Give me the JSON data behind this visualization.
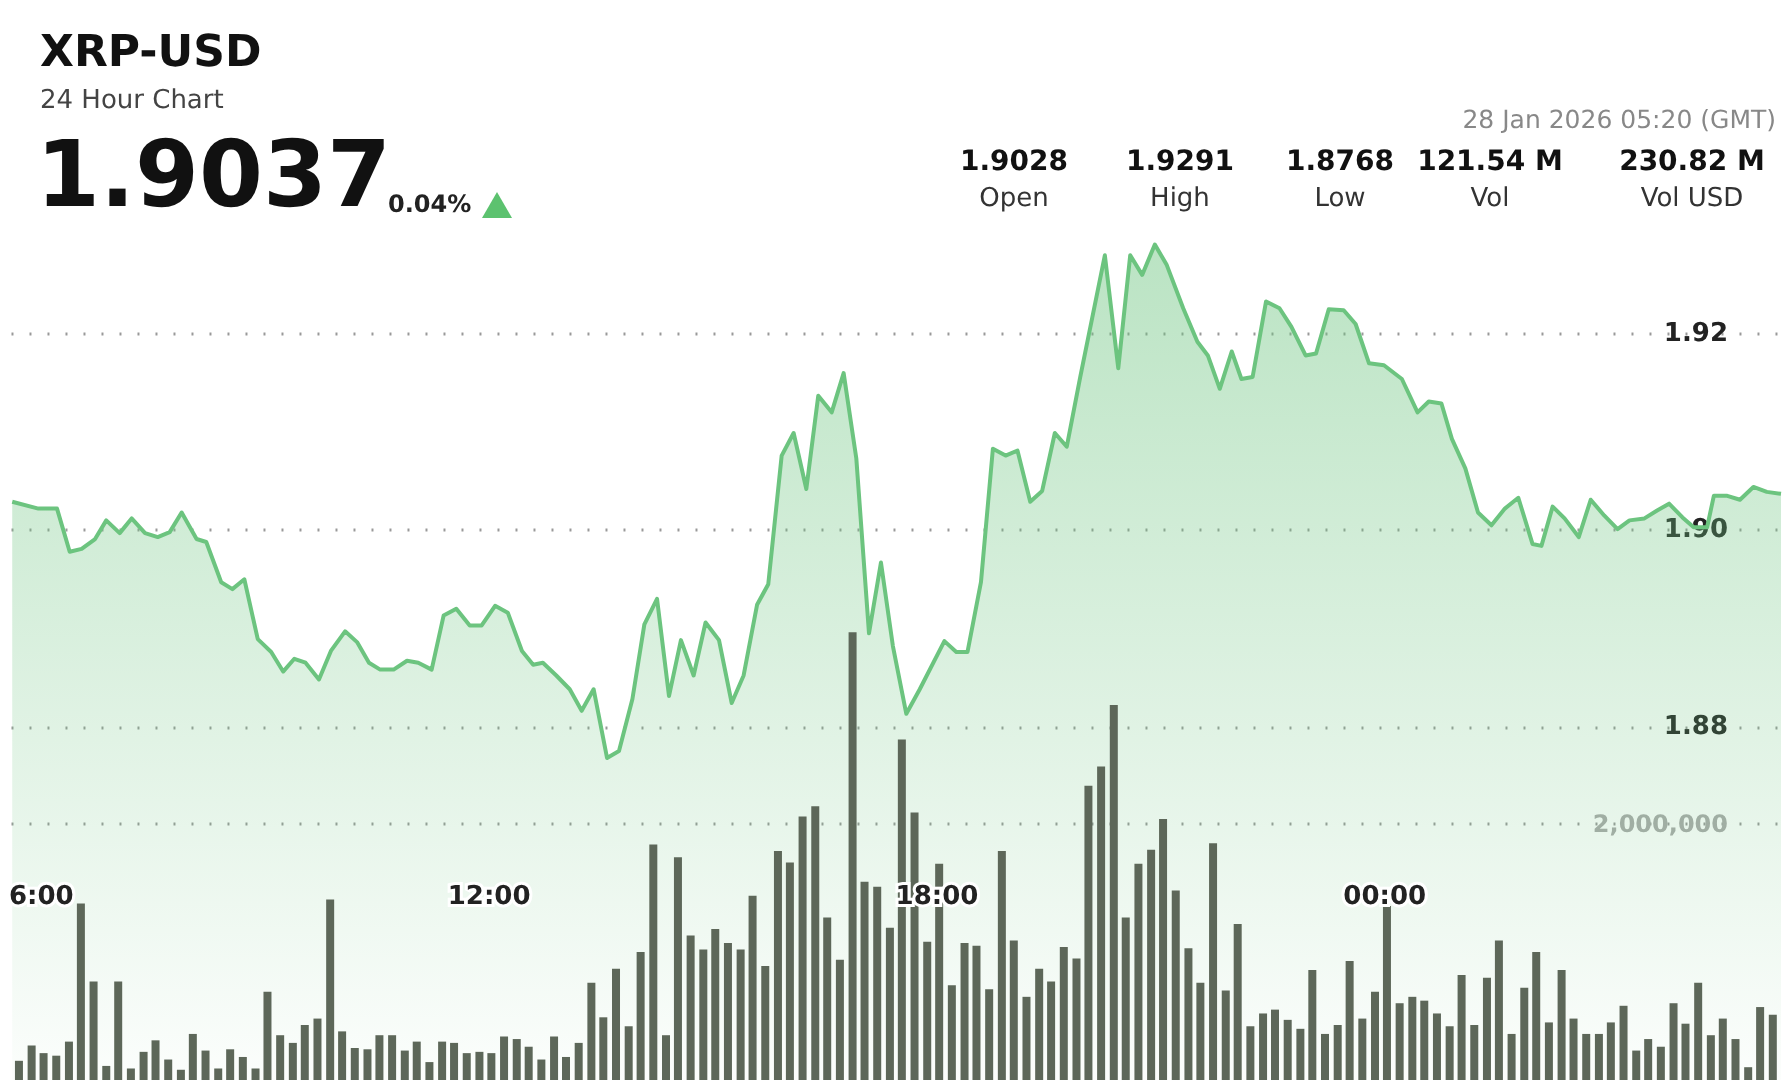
{
  "chart_data": {
    "type": "area",
    "title": "XRP-USD",
    "subtitle": "24 Hour Chart",
    "annotations": [
      "1.9037",
      "0.04%",
      "1.9028",
      "Open",
      "1.9291",
      "High",
      "1.8768",
      "Low",
      "121.54 M",
      "Vol",
      "230.82 M",
      "Vol USD",
      "28 Jan 2026 05:20 (GMT)"
    ],
    "xlim": [
      5.6,
      29.35
    ],
    "xticks": [
      {
        "value": 6,
        "label": "6:00"
      },
      {
        "value": 12,
        "label": "12:00"
      },
      {
        "value": 18,
        "label": "18:00"
      },
      {
        "value": 24,
        "label": "00:00"
      }
    ],
    "ylim": [
      1.844,
      1.954
    ],
    "yticks": [
      1.88,
      {
        "value": 1.9,
        "label": "1.90"
      },
      1.92
    ],
    "y2lim": [
      0,
      8440000
    ],
    "y2ticks": [
      {
        "value": 2000000,
        "label": "2,000,000"
      }
    ],
    "grid": "y",
    "line_style": "solid",
    "marker": "none",
    "series": [
      {
        "color": "#6cc47f",
        "x": [
          5.61,
          5.96,
          6.21,
          6.38,
          6.54,
          6.72,
          6.87,
          7.05,
          7.21,
          7.39,
          7.56,
          7.72,
          7.88,
          8.08,
          8.21,
          8.41,
          8.56,
          8.72,
          8.9,
          9.08,
          9.24,
          9.39,
          9.54,
          9.72,
          9.88,
          10.07,
          10.23,
          10.39,
          10.54,
          10.72,
          10.9,
          11.05,
          11.23,
          11.39,
          11.56,
          11.74,
          11.9,
          12.08,
          12.25,
          12.44,
          12.59,
          12.72,
          12.9,
          13.08,
          13.24,
          13.4,
          13.58,
          13.74,
          13.92,
          14.08,
          14.25,
          14.41,
          14.57,
          14.74,
          14.9,
          15.08,
          15.25,
          15.41,
          15.59,
          15.74,
          15.92,
          16.08,
          16.25,
          16.41,
          16.59,
          16.75,
          16.92,
          17.09,
          17.25,
          17.41,
          17.59,
          17.77,
          18.1,
          18.26,
          18.41,
          18.59,
          18.75,
          18.92,
          19.08,
          19.25,
          19.41,
          19.58,
          19.74,
          19.92,
          20.08,
          20.25,
          20.43,
          20.59,
          20.75,
          20.92,
          21.08,
          21.3,
          21.49,
          21.63,
          21.79,
          21.95,
          22.08,
          22.23,
          22.41,
          22.59,
          22.75,
          22.94,
          23.08,
          23.25,
          23.45,
          23.61,
          23.79,
          23.99,
          24.23,
          24.44,
          24.59,
          24.76,
          24.9,
          25.08,
          25.25,
          25.43,
          25.61,
          25.79,
          25.98,
          26.1,
          26.25,
          26.41,
          26.6,
          26.76,
          26.94,
          27.12,
          27.28,
          27.48,
          27.65,
          27.81,
          27.99,
          28.14,
          28.32,
          28.41,
          28.59,
          28.76,
          28.94,
          29.12,
          29.31
        ],
        "values": [
          1.9029,
          1.9022,
          1.9022,
          1.8978,
          1.8981,
          1.8991,
          1.901,
          1.8997,
          1.9012,
          1.8997,
          1.8993,
          1.8998,
          1.9018,
          1.8991,
          1.8988,
          1.8947,
          1.894,
          1.895,
          1.8889,
          1.8876,
          1.8856,
          1.8869,
          1.8865,
          1.8848,
          1.8877,
          1.8897,
          1.8886,
          1.8865,
          1.8858,
          1.8858,
          1.8867,
          1.8865,
          1.8858,
          1.8913,
          1.892,
          1.8903,
          1.8903,
          1.8923,
          1.8916,
          1.8877,
          1.8863,
          1.8865,
          1.8852,
          1.8838,
          1.8816,
          1.8838,
          1.8768,
          1.8775,
          1.8828,
          1.8904,
          1.893,
          1.8831,
          1.8888,
          1.8852,
          1.8906,
          1.8888,
          1.8824,
          1.8852,
          1.8924,
          1.8945,
          1.9076,
          1.9099,
          1.9042,
          1.9137,
          1.912,
          1.916,
          1.9073,
          1.8895,
          1.8967,
          1.8882,
          1.8813,
          1.8838,
          1.8887,
          1.8876,
          1.8876,
          1.8947,
          1.9083,
          1.9076,
          1.9081,
          1.9029,
          1.904,
          1.9099,
          1.9085,
          1.9156,
          1.9216,
          1.928,
          1.9165,
          1.928,
          1.926,
          1.9291,
          1.927,
          1.9226,
          1.9192,
          1.9178,
          1.9144,
          1.9182,
          1.9154,
          1.9156,
          1.9233,
          1.9226,
          1.9207,
          1.9178,
          1.918,
          1.9225,
          1.9224,
          1.921,
          1.917,
          1.9168,
          1.9154,
          1.912,
          1.9131,
          1.9129,
          1.9093,
          1.9063,
          1.9018,
          1.9005,
          1.9022,
          1.9033,
          1.8986,
          1.8984,
          1.9024,
          1.9012,
          1.8993,
          1.9031,
          1.9015,
          1.9001,
          1.901,
          1.9012,
          1.902,
          1.9027,
          1.9013,
          1.9003,
          1.9003,
          1.9035,
          1.9035,
          1.9031,
          1.9044,
          1.9039,
          1.9037
        ]
      },
      {
        "type": "bar",
        "axis": "y2",
        "color": "#5d6759",
        "x": [
          5.7,
          5.87,
          6.03,
          6.2,
          6.37,
          6.53,
          6.7,
          6.87,
          7.03,
          7.2,
          7.37,
          7.53,
          7.7,
          7.87,
          8.03,
          8.2,
          8.37,
          8.53,
          8.7,
          8.87,
          9.03,
          9.2,
          9.37,
          9.53,
          9.7,
          9.87,
          10.03,
          10.2,
          10.37,
          10.53,
          10.7,
          10.87,
          11.03,
          11.2,
          11.37,
          11.53,
          11.7,
          11.87,
          12.03,
          12.2,
          12.37,
          12.53,
          12.7,
          12.87,
          13.03,
          13.2,
          13.37,
          13.53,
          13.7,
          13.87,
          14.03,
          14.2,
          14.37,
          14.53,
          14.7,
          14.87,
          15.03,
          15.2,
          15.37,
          15.53,
          15.7,
          15.87,
          16.03,
          16.2,
          16.37,
          16.53,
          16.7,
          16.87,
          17.03,
          17.2,
          17.37,
          17.53,
          17.7,
          17.87,
          18.03,
          18.2,
          18.37,
          18.53,
          18.7,
          18.87,
          19.03,
          19.2,
          19.37,
          19.53,
          19.7,
          19.87,
          20.03,
          20.2,
          20.37,
          20.53,
          20.7,
          20.87,
          21.03,
          21.2,
          21.37,
          21.53,
          21.7,
          21.87,
          22.03,
          22.2,
          22.37,
          22.53,
          22.7,
          22.87,
          23.03,
          23.2,
          23.37,
          23.53,
          23.7,
          23.87,
          24.03,
          24.2,
          24.37,
          24.53,
          24.7,
          24.87,
          25.03,
          25.2,
          25.37,
          25.53,
          25.7,
          25.87,
          26.03,
          26.2,
          26.37,
          26.53,
          26.7,
          26.87,
          27.03,
          27.2,
          27.37,
          27.53,
          27.7,
          27.87,
          28.03,
          28.2,
          28.37,
          28.53,
          28.7,
          28.87,
          29.03,
          29.2
        ],
        "values": [
          150000,
          270000,
          210000,
          190000,
          300000,
          1380000,
          770000,
          110000,
          770000,
          90000,
          220000,
          310000,
          160000,
          80000,
          360000,
          230000,
          90000,
          240000,
          180000,
          90000,
          690000,
          350000,
          290000,
          430000,
          480000,
          1410000,
          380000,
          250000,
          240000,
          350000,
          350000,
          230000,
          300000,
          140000,
          300000,
          290000,
          210000,
          220000,
          210000,
          340000,
          320000,
          260000,
          160000,
          340000,
          180000,
          290000,
          760000,
          490000,
          870000,
          420000,
          1000000,
          1840000,
          350000,
          1740000,
          1130000,
          1020000,
          1180000,
          1070000,
          1020000,
          1440000,
          890000,
          1790000,
          1700000,
          2060000,
          2140000,
          1270000,
          940000,
          3500000,
          1550000,
          1510000,
          1190000,
          2660000,
          2090000,
          1080000,
          1690000,
          740000,
          1070000,
          1050000,
          710000,
          1790000,
          1090000,
          650000,
          870000,
          770000,
          1040000,
          950000,
          2300000,
          2450000,
          2930000,
          1270000,
          1690000,
          1800000,
          2040000,
          1480000,
          1030000,
          760000,
          1850000,
          700000,
          1220000,
          420000,
          520000,
          550000,
          470000,
          400000,
          860000,
          360000,
          430000,
          930000,
          480000,
          690000,
          1360000,
          600000,
          650000,
          620000,
          520000,
          420000,
          820000,
          430000,
          800000,
          1090000,
          360000,
          720000,
          1000000,
          450000,
          860000,
          480000,
          360000,
          360000,
          450000,
          580000,
          230000,
          320000,
          260000,
          600000,
          440000,
          760000,
          350000,
          480000,
          320000,
          100000,
          570000,
          510000
        ]
      }
    ]
  }
}
